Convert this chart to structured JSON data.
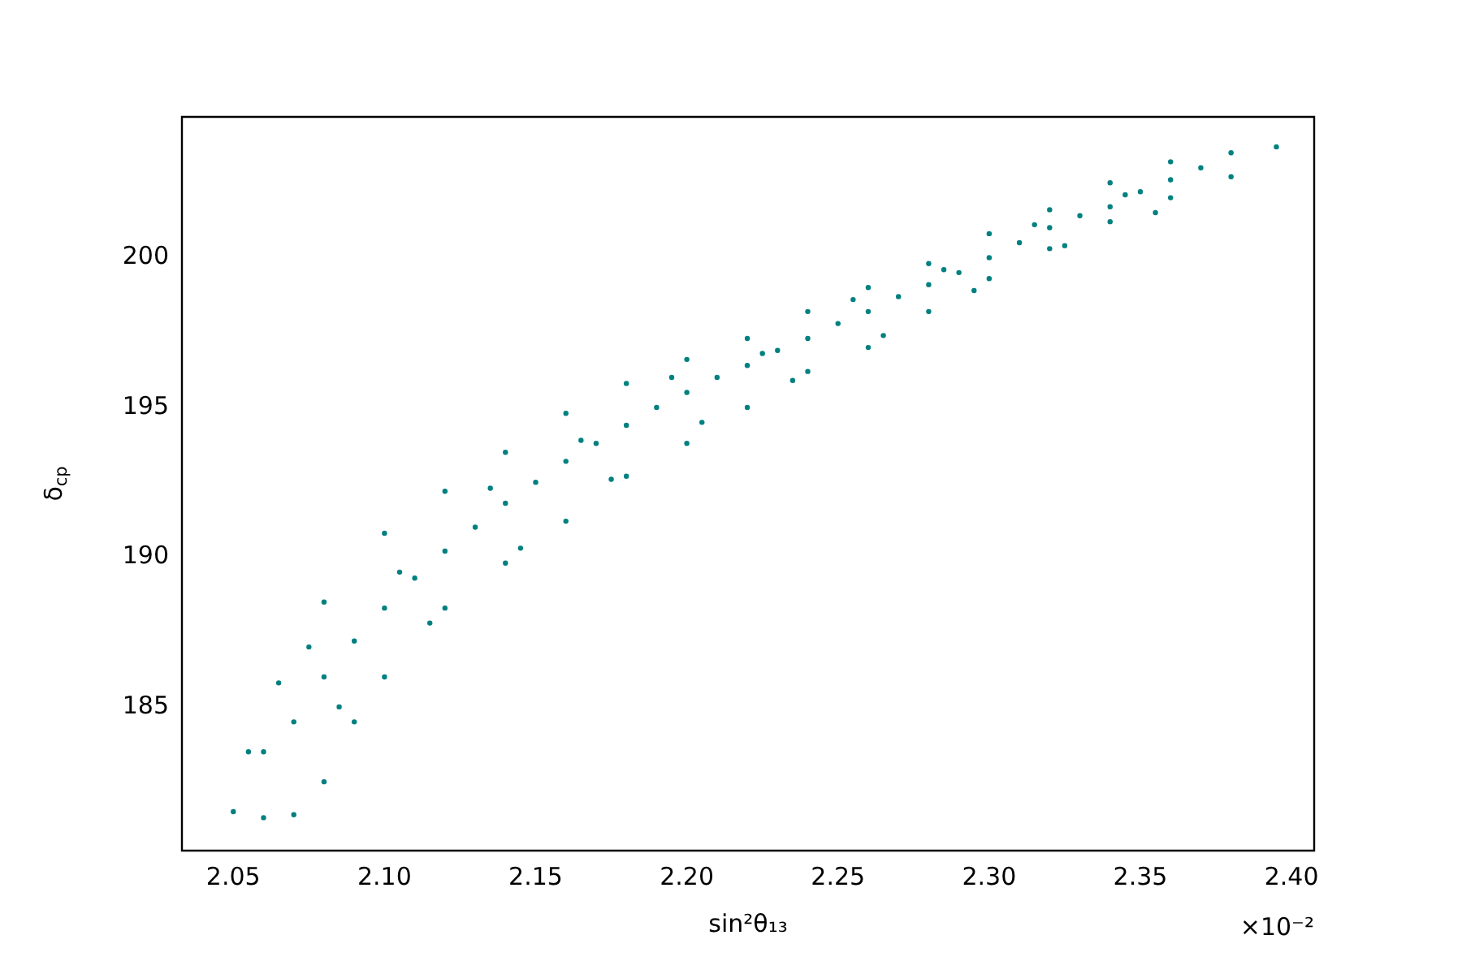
{
  "chart_data": {
    "type": "scatter",
    "xlabel": "sin²θ₁₃",
    "ylabel": "δ$_{cp}$",
    "annotations": [
      "×10⁻²"
    ],
    "marker": "circle",
    "grid": false,
    "xlim": [
      2.033,
      2.4075
    ],
    "ylim": [
      180.2,
      204.7
    ],
    "xticks": [
      2.05,
      {
        "value": 2.1,
        "label": "2.10"
      },
      2.15,
      {
        "value": 2.2,
        "label": "2.20"
      },
      2.25,
      {
        "value": 2.3,
        "label": "2.30"
      },
      2.35,
      {
        "value": 2.4,
        "label": "2.40"
      }
    ],
    "yticks": [
      185,
      190,
      195,
      200
    ],
    "series": [
      {
        "color": "#008080",
        "x": [
          2.055,
          2.065,
          2.08,
          2.1,
          2.12,
          2.14,
          2.16,
          2.18,
          2.2,
          2.22,
          2.24,
          2.26,
          2.28,
          2.3,
          2.32,
          2.34,
          2.36,
          2.38,
          2.395,
          2.05,
          2.06,
          2.07,
          2.08,
          2.09,
          2.1,
          2.12,
          2.14,
          2.16,
          2.18,
          2.2,
          2.22,
          2.24,
          2.26,
          2.28,
          2.3,
          2.32,
          2.34,
          2.36,
          2.38,
          2.06,
          2.07,
          2.08,
          2.09,
          2.1,
          2.11,
          2.12,
          2.13,
          2.14,
          2.15,
          2.16,
          2.17,
          2.18,
          2.19,
          2.2,
          2.21,
          2.22,
          2.23,
          2.24,
          2.25,
          2.26,
          2.27,
          2.28,
          2.29,
          2.3,
          2.31,
          2.32,
          2.33,
          2.34,
          2.35,
          2.36,
          2.37,
          2.075,
          2.085,
          2.105,
          2.115,
          2.135,
          2.145,
          2.165,
          2.175,
          2.195,
          2.205,
          2.225,
          2.235,
          2.255,
          2.265,
          2.285,
          2.295,
          2.315,
          2.325,
          2.345,
          2.355
        ],
        "values": [
          183.5,
          185.8,
          188.5,
          190.8,
          192.2,
          193.5,
          194.8,
          195.8,
          196.6,
          197.3,
          198.2,
          199.0,
          199.8,
          200.8,
          201.6,
          202.5,
          203.2,
          203.5,
          203.7,
          181.5,
          181.3,
          181.4,
          182.5,
          184.5,
          186.0,
          188.3,
          189.8,
          191.2,
          192.7,
          193.8,
          195.0,
          196.2,
          197.0,
          198.2,
          199.3,
          200.3,
          201.2,
          202.0,
          202.7,
          183.5,
          184.5,
          186.0,
          187.2,
          188.3,
          189.3,
          190.2,
          191.0,
          191.8,
          192.5,
          193.2,
          193.8,
          194.4,
          195.0,
          195.5,
          196.0,
          196.4,
          196.9,
          197.3,
          197.8,
          198.2,
          198.7,
          199.1,
          199.5,
          200.0,
          200.5,
          201.0,
          201.4,
          201.7,
          202.2,
          202.6,
          203.0,
          187,
          185,
          189.5,
          187.8,
          192.3,
          190.3,
          193.9,
          192.6,
          196,
          194.5,
          196.8,
          195.9,
          198.6,
          197.4,
          199.6,
          198.9,
          201.1,
          200.4,
          202.1,
          201.5
        ]
      }
    ]
  }
}
